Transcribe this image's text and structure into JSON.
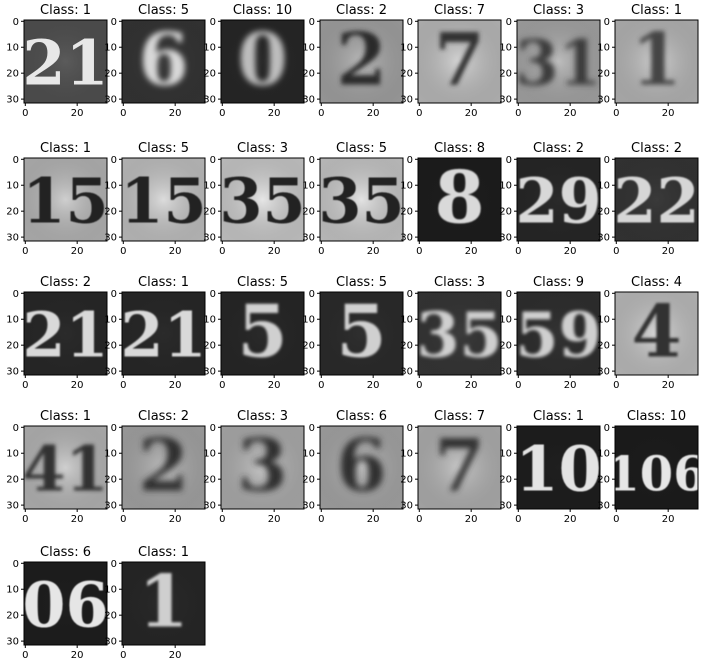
{
  "figure": {
    "columns": 7,
    "title_prefix": "Class: ",
    "x_ticks": [
      0,
      20
    ],
    "y_ticks": [
      0,
      10,
      20,
      30
    ],
    "samples": [
      {
        "label": "1",
        "bg": "#5b5b5b",
        "fg": "#e8e8e8",
        "glyph": "21",
        "blur": 0.3
      },
      {
        "label": "5",
        "bg": "#3a3a3a",
        "fg": "#d8d8d8",
        "glyph": "6",
        "blur": 3.0
      },
      {
        "label": "10",
        "bg": "#2a2a2a",
        "fg": "#bdbdbd",
        "glyph": "0",
        "blur": 3.0
      },
      {
        "label": "2",
        "bg": "#b9b9b9",
        "fg": "#2a2a2a",
        "glyph": "2",
        "blur": 2.5
      },
      {
        "label": "7",
        "bg": "#d5d5d5",
        "fg": "#333333",
        "glyph": "7",
        "blur": 2.0
      },
      {
        "label": "3",
        "bg": "#bdbdbd",
        "fg": "#3a3a3a",
        "glyph": "31",
        "blur": 2.8
      },
      {
        "label": "1",
        "bg": "#cfcfcf",
        "fg": "#444444",
        "glyph": "1",
        "blur": 2.5
      },
      {
        "label": "1",
        "bg": "#cfcfcf",
        "fg": "#202020",
        "glyph": "15",
        "blur": 0.6
      },
      {
        "label": "5",
        "bg": "#dcdcdc",
        "fg": "#202020",
        "glyph": "15",
        "blur": 0.6
      },
      {
        "label": "3",
        "bg": "#e6e6e6",
        "fg": "#202020",
        "glyph": "35",
        "blur": 0.5
      },
      {
        "label": "5",
        "bg": "#e3e3e3",
        "fg": "#202020",
        "glyph": "35",
        "blur": 0.5
      },
      {
        "label": "8",
        "bg": "#1e1e1e",
        "fg": "#d9d9d9",
        "glyph": "8",
        "blur": 0.7
      },
      {
        "label": "2",
        "bg": "#2a2a2a",
        "fg": "#d8d8d8",
        "glyph": "29",
        "blur": 0.8
      },
      {
        "label": "2",
        "bg": "#3a3a3a",
        "fg": "#d6d6d6",
        "glyph": "22",
        "blur": 0.8
      },
      {
        "label": "2",
        "bg": "#2b2b2b",
        "fg": "#d9d9d9",
        "glyph": "21",
        "blur": 0.8
      },
      {
        "label": "1",
        "bg": "#2b2b2b",
        "fg": "#d9d9d9",
        "glyph": "21",
        "blur": 0.8
      },
      {
        "label": "5",
        "bg": "#2a2a2a",
        "fg": "#d0d0d0",
        "glyph": "5",
        "blur": 1.2
      },
      {
        "label": "5",
        "bg": "#2f2f2f",
        "fg": "#d0d0d0",
        "glyph": "5",
        "blur": 1.0
      },
      {
        "label": "3",
        "bg": "#3b3b3b",
        "fg": "#cfcfcf",
        "glyph": "35",
        "blur": 1.8
      },
      {
        "label": "9",
        "bg": "#333333",
        "fg": "#cfcfcf",
        "glyph": "59",
        "blur": 1.6
      },
      {
        "label": "4",
        "bg": "#d8d8d8",
        "fg": "#303030",
        "glyph": "4",
        "blur": 1.4
      },
      {
        "label": "1",
        "bg": "#cfcfcf",
        "fg": "#333333",
        "glyph": "41",
        "blur": 1.8
      },
      {
        "label": "2",
        "bg": "#bcbcbc",
        "fg": "#2f2f2f",
        "glyph": "2",
        "blur": 3.2
      },
      {
        "label": "3",
        "bg": "#c5c5c5",
        "fg": "#2f2f2f",
        "glyph": "3",
        "blur": 3.2
      },
      {
        "label": "6",
        "bg": "#bdbdbd",
        "fg": "#2f2f2f",
        "glyph": "6",
        "blur": 3.2
      },
      {
        "label": "7",
        "bg": "#c8c8c8",
        "fg": "#333333",
        "glyph": "7",
        "blur": 3.0
      },
      {
        "label": "1",
        "bg": "#1f1f1f",
        "fg": "#e3e3e3",
        "glyph": "10",
        "blur": 0.5
      },
      {
        "label": "10",
        "bg": "#1d1d1d",
        "fg": "#e6e6e6",
        "glyph": "106",
        "blur": 0.4
      },
      {
        "label": "6",
        "bg": "#1f1f1f",
        "fg": "#e6e6e6",
        "glyph": "06",
        "blur": 0.5
      },
      {
        "label": "1",
        "bg": "#2a2a2a",
        "fg": "#cfcfcf",
        "glyph": "1",
        "blur": 1.2
      }
    ]
  }
}
